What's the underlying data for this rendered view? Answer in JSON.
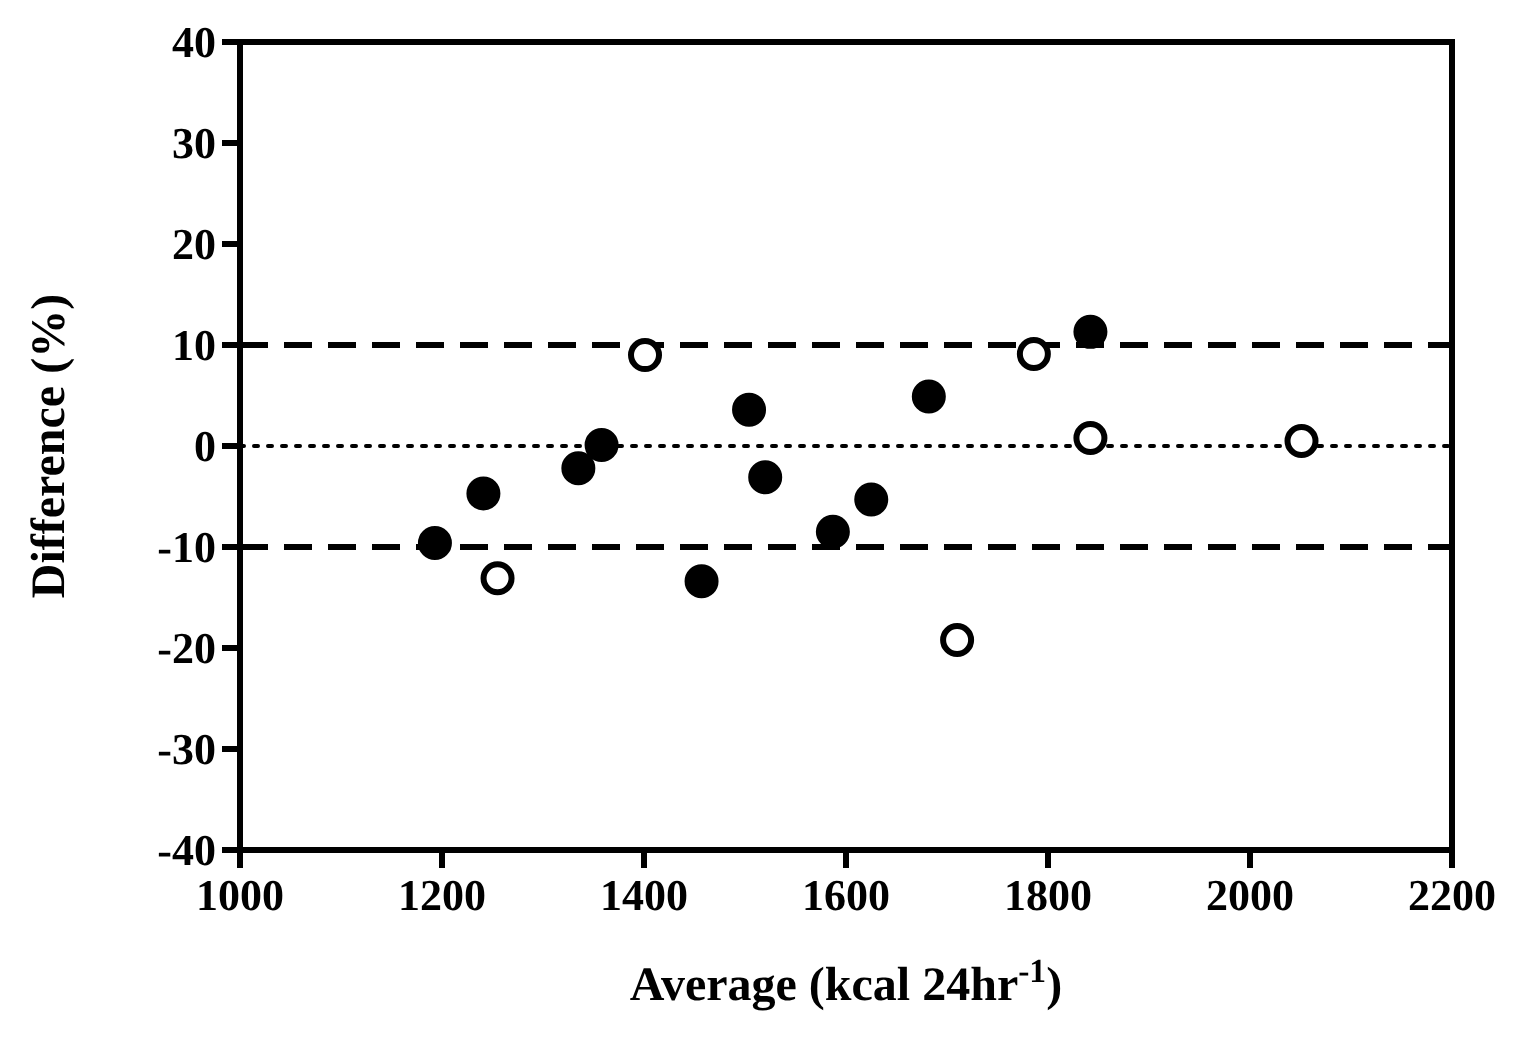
{
  "chart_data": {
    "type": "scatter",
    "xlabel": "Average (kcal 24hr$^{-1}$)",
    "ylabel": "Difference (%)",
    "xlim": [
      1000,
      2200
    ],
    "xticks": [
      1000,
      1200,
      1400,
      1600,
      1800,
      2000,
      2200
    ],
    "ylim": [
      -40,
      40
    ],
    "yticks": [
      -40,
      -30,
      -20,
      -10,
      0,
      10,
      20,
      30,
      40
    ],
    "grid": false,
    "marker": "circle",
    "series": [
      {
        "color": "#000000",
        "x": [
          1193,
          1241,
          1335,
          1358,
          1457,
          1504,
          1520,
          1587,
          1625,
          1682,
          1842
        ],
        "values": [
          -9.6,
          -4.7,
          -2.2,
          0.1,
          -13.4,
          3.6,
          -3.1,
          -8.5,
          -5.3,
          4.9,
          11.3
        ]
      },
      {
        "color": "#ffffff",
        "x": [
          1255,
          1401,
          1710,
          1786,
          1842,
          2051
        ],
        "values": [
          -13.1,
          9.0,
          -19.2,
          9.1,
          0.8,
          0.5
        ]
      }
    ],
    "ref_lines": [
      {
        "axis": "y",
        "value": 10,
        "line_style": "dashed"
      },
      {
        "axis": "y",
        "value": 0,
        "line_style": "dotted"
      },
      {
        "axis": "y",
        "value": -10,
        "line_style": "dashed"
      }
    ]
  }
}
